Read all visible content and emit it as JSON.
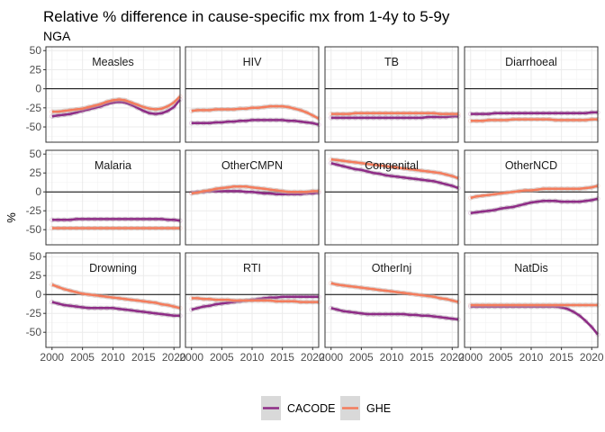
{
  "chart_data": {
    "type": "line",
    "title": "Relative % difference in cause-specific mx from 1-4y to 5-9y",
    "subtitle": "NGA",
    "xlabel": "",
    "ylabel": "%",
    "xlim": [
      1999,
      2021
    ],
    "ylim": [
      -70,
      55
    ],
    "x_ticks": [
      2000,
      2005,
      2010,
      2015,
      2020
    ],
    "y_ticks": [
      -50,
      -25,
      0,
      25,
      50
    ],
    "grid": true,
    "legend_position": "bottom",
    "reference_line": 0,
    "series_colors": {
      "CACODE": "#8e2c86",
      "GHE": "#f47c5c"
    },
    "legend": [
      {
        "name": "CACODE",
        "color": "#8e2c86"
      },
      {
        "name": "GHE",
        "color": "#f47c5c"
      }
    ],
    "x": [
      2000,
      2001,
      2002,
      2003,
      2004,
      2005,
      2006,
      2007,
      2008,
      2009,
      2010,
      2011,
      2012,
      2013,
      2014,
      2015,
      2016,
      2017,
      2018,
      2019,
      2020,
      2021
    ],
    "panels": [
      {
        "name": "Measles",
        "series": [
          {
            "name": "CACODE",
            "values": [
              -36,
              -35,
              -34,
              -33,
              -31,
              -29,
              -27,
              -25,
              -23,
              -20,
              -18,
              -17,
              -18,
              -21,
              -25,
              -29,
              -32,
              -33,
              -32,
              -29,
              -24,
              -14
            ]
          },
          {
            "name": "GHE",
            "values": [
              -30,
              -30,
              -29,
              -28,
              -27,
              -26,
              -24,
              -22,
              -20,
              -17,
              -15,
              -14,
              -15,
              -18,
              -21,
              -24,
              -26,
              -27,
              -26,
              -23,
              -18,
              -10
            ]
          }
        ]
      },
      {
        "name": "HIV",
        "series": [
          {
            "name": "CACODE",
            "values": [
              -45,
              -45,
              -45,
              -45,
              -44,
              -44,
              -43,
              -43,
              -42,
              -42,
              -41,
              -41,
              -41,
              -41,
              -41,
              -41,
              -42,
              -42,
              -43,
              -44,
              -45,
              -47
            ]
          },
          {
            "name": "GHE",
            "values": [
              -29,
              -28,
              -28,
              -28,
              -27,
              -27,
              -27,
              -27,
              -26,
              -26,
              -25,
              -25,
              -24,
              -23,
              -23,
              -23,
              -24,
              -26,
              -28,
              -31,
              -35,
              -39
            ]
          }
        ]
      },
      {
        "name": "TB",
        "series": [
          {
            "name": "CACODE",
            "values": [
              -38,
              -38,
              -38,
              -38,
              -38,
              -38,
              -38,
              -38,
              -38,
              -38,
              -38,
              -38,
              -38,
              -38,
              -38,
              -38,
              -37,
              -37,
              -37,
              -37,
              -36,
              -36
            ]
          },
          {
            "name": "GHE",
            "values": [
              -33,
              -33,
              -33,
              -33,
              -32,
              -32,
              -32,
              -32,
              -32,
              -32,
              -32,
              -32,
              -32,
              -32,
              -32,
              -32,
              -32,
              -32,
              -33,
              -33,
              -33,
              -33
            ]
          }
        ]
      },
      {
        "name": "Diarrhoeal",
        "series": [
          {
            "name": "CACODE",
            "values": [
              -33,
              -33,
              -33,
              -33,
              -32,
              -32,
              -32,
              -32,
              -32,
              -32,
              -32,
              -32,
              -32,
              -32,
              -32,
              -32,
              -32,
              -32,
              -32,
              -32,
              -31,
              -31
            ]
          },
          {
            "name": "GHE",
            "values": [
              -42,
              -42,
              -42,
              -41,
              -41,
              -41,
              -41,
              -40,
              -40,
              -40,
              -40,
              -40,
              -40,
              -40,
              -41,
              -41,
              -41,
              -41,
              -41,
              -41,
              -40,
              -40
            ]
          }
        ]
      },
      {
        "name": "Malaria",
        "series": [
          {
            "name": "CACODE",
            "values": [
              -37,
              -37,
              -37,
              -37,
              -36,
              -36,
              -36,
              -36,
              -36,
              -36,
              -36,
              -36,
              -36,
              -36,
              -36,
              -36,
              -36,
              -36,
              -36,
              -37,
              -37,
              -38
            ]
          },
          {
            "name": "GHE",
            "values": [
              -48,
              -48,
              -48,
              -48,
              -48,
              -48,
              -48,
              -48,
              -48,
              -48,
              -48,
              -48,
              -48,
              -48,
              -48,
              -48,
              -48,
              -48,
              -48,
              -48,
              -48,
              -48
            ]
          }
        ]
      },
      {
        "name": "OtherCMPN",
        "series": [
          {
            "name": "CACODE",
            "values": [
              -1,
              0,
              0,
              1,
              1,
              1,
              1,
              1,
              1,
              0,
              0,
              -1,
              -2,
              -2,
              -3,
              -3,
              -3,
              -3,
              -3,
              -2,
              -2,
              -1
            ]
          },
          {
            "name": "GHE",
            "values": [
              -2,
              -1,
              1,
              2,
              4,
              5,
              6,
              7,
              7,
              7,
              6,
              5,
              4,
              3,
              2,
              1,
              0,
              0,
              0,
              0,
              1,
              1
            ]
          }
        ]
      },
      {
        "name": "Congenital",
        "series": [
          {
            "name": "CACODE",
            "values": [
              38,
              36,
              34,
              32,
              30,
              29,
              27,
              25,
              24,
              22,
              21,
              20,
              19,
              18,
              17,
              16,
              15,
              14,
              12,
              10,
              8,
              5
            ]
          },
          {
            "name": "GHE",
            "values": [
              43,
              42,
              41,
              40,
              39,
              38,
              37,
              36,
              35,
              34,
              33,
              32,
              31,
              30,
              29,
              28,
              27,
              26,
              25,
              23,
              21,
              18
            ]
          }
        ]
      },
      {
        "name": "OtherNCD",
        "series": [
          {
            "name": "CACODE",
            "values": [
              -28,
              -27,
              -26,
              -25,
              -24,
              -22,
              -21,
              -20,
              -18,
              -16,
              -14,
              -13,
              -12,
              -12,
              -12,
              -13,
              -13,
              -13,
              -13,
              -12,
              -11,
              -9
            ]
          },
          {
            "name": "GHE",
            "values": [
              -8,
              -6,
              -5,
              -4,
              -3,
              -2,
              -1,
              0,
              1,
              2,
              2,
              3,
              4,
              4,
              4,
              4,
              4,
              4,
              4,
              5,
              6,
              8
            ]
          }
        ]
      },
      {
        "name": "Drowning",
        "series": [
          {
            "name": "CACODE",
            "values": [
              -10,
              -12,
              -14,
              -15,
              -16,
              -17,
              -18,
              -18,
              -18,
              -18,
              -18,
              -19,
              -20,
              -21,
              -22,
              -23,
              -24,
              -25,
              -26,
              -27,
              -28,
              -28
            ]
          },
          {
            "name": "GHE",
            "values": [
              13,
              10,
              7,
              5,
              3,
              1,
              0,
              -1,
              -2,
              -3,
              -4,
              -5,
              -6,
              -7,
              -8,
              -9,
              -10,
              -11,
              -13,
              -14,
              -16,
              -18
            ]
          }
        ]
      },
      {
        "name": "RTI",
        "series": [
          {
            "name": "CACODE",
            "values": [
              -20,
              -18,
              -16,
              -15,
              -13,
              -12,
              -11,
              -10,
              -9,
              -8,
              -7,
              -6,
              -5,
              -4,
              -4,
              -3,
              -3,
              -3,
              -3,
              -3,
              -3,
              -3
            ]
          },
          {
            "name": "GHE",
            "values": [
              -5,
              -5,
              -6,
              -6,
              -7,
              -7,
              -7,
              -8,
              -8,
              -8,
              -8,
              -8,
              -8,
              -8,
              -9,
              -9,
              -9,
              -9,
              -10,
              -10,
              -10,
              -10
            ]
          }
        ]
      },
      {
        "name": "OtherInj",
        "series": [
          {
            "name": "CACODE",
            "values": [
              -18,
              -20,
              -22,
              -23,
              -24,
              -25,
              -26,
              -26,
              -26,
              -26,
              -26,
              -26,
              -26,
              -27,
              -27,
              -28,
              -28,
              -29,
              -30,
              -31,
              -32,
              -33
            ]
          },
          {
            "name": "GHE",
            "values": [
              15,
              13,
              12,
              11,
              10,
              9,
              8,
              7,
              6,
              5,
              4,
              3,
              2,
              1,
              0,
              -1,
              -2,
              -3,
              -5,
              -6,
              -8,
              -10
            ]
          }
        ]
      },
      {
        "name": "NatDis",
        "series": [
          {
            "name": "CACODE",
            "values": [
              -16,
              -16,
              -16,
              -16,
              -16,
              -16,
              -16,
              -16,
              -16,
              -16,
              -16,
              -16,
              -16,
              -16,
              -16,
              -17,
              -19,
              -23,
              -28,
              -35,
              -43,
              -53
            ]
          },
          {
            "name": "GHE",
            "values": [
              -14,
              -14,
              -14,
              -14,
              -14,
              -14,
              -14,
              -14,
              -14,
              -14,
              -14,
              -14,
              -14,
              -14,
              -14,
              -14,
              -14,
              -14,
              -14,
              -14,
              -14,
              -14
            ]
          }
        ]
      }
    ]
  }
}
